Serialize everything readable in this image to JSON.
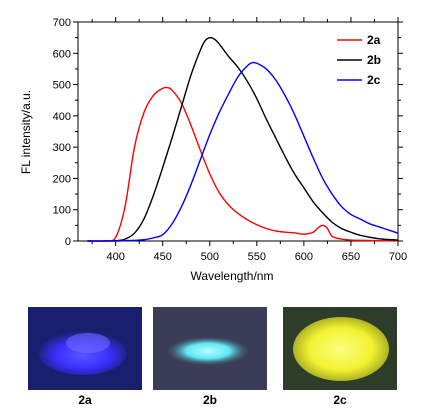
{
  "chart_data": {
    "type": "line",
    "xlabel": "Wavelength/nm",
    "ylabel": "FL intensity/a.u.",
    "xlim": [
      360,
      700
    ],
    "ylim": [
      0,
      700
    ],
    "xticks": [
      400,
      450,
      500,
      550,
      600,
      650,
      700
    ],
    "yticks": [
      0,
      100,
      200,
      300,
      400,
      500,
      600,
      700
    ],
    "grid": false,
    "legend_position": "top-right",
    "series": [
      {
        "name": "2a",
        "color": "#ff0000",
        "x": [
          370,
          380,
          390,
          400,
          410,
          420,
          430,
          440,
          450,
          455,
          460,
          470,
          480,
          490,
          500,
          510,
          520,
          530,
          540,
          550,
          560,
          570,
          580,
          590,
          600,
          610,
          615,
          620,
          625,
          630,
          640,
          650,
          660,
          680,
          700
        ],
        "y": [
          0,
          0,
          1,
          12,
          110,
          300,
          410,
          465,
          488,
          490,
          482,
          440,
          370,
          290,
          215,
          155,
          115,
          88,
          68,
          52,
          40,
          32,
          28,
          26,
          22,
          28,
          42,
          50,
          40,
          15,
          6,
          3,
          2,
          1,
          1
        ]
      },
      {
        "name": "2b",
        "color": "#000000",
        "x": [
          370,
          390,
          400,
          410,
          420,
          430,
          440,
          450,
          460,
          470,
          480,
          490,
          495,
          500,
          505,
          510,
          520,
          530,
          540,
          550,
          560,
          570,
          580,
          590,
          600,
          610,
          620,
          630,
          640,
          650,
          660,
          680,
          700
        ],
        "y": [
          0,
          0,
          1,
          6,
          25,
          70,
          145,
          235,
          330,
          430,
          530,
          610,
          640,
          650,
          645,
          630,
          590,
          555,
          510,
          455,
          390,
          330,
          270,
          215,
          170,
          125,
          90,
          60,
          40,
          28,
          18,
          7,
          3
        ]
      },
      {
        "name": "2c",
        "color": "#0000ff",
        "x": [
          370,
          400,
          410,
          420,
          430,
          440,
          450,
          460,
          470,
          480,
          490,
          500,
          510,
          520,
          530,
          540,
          545,
          550,
          560,
          570,
          580,
          590,
          600,
          610,
          620,
          630,
          640,
          650,
          660,
          670,
          680,
          690,
          700
        ],
        "y": [
          0,
          0,
          1,
          2,
          4,
          10,
          20,
          55,
          110,
          180,
          260,
          340,
          410,
          470,
          525,
          560,
          570,
          568,
          550,
          515,
          465,
          405,
          335,
          265,
          200,
          150,
          110,
          85,
          70,
          55,
          45,
          35,
          25
        ]
      }
    ]
  },
  "photos": {
    "items": [
      {
        "label": "2a",
        "background_color": "#1a1e6e",
        "glow_color": "#3a30ff"
      },
      {
        "label": "2b",
        "background_color": "#3a3d55",
        "glow_color": "#5fe8f5"
      },
      {
        "label": "2c",
        "background_color": "#2d3d2a",
        "glow_color": "#f2f230"
      }
    ]
  }
}
